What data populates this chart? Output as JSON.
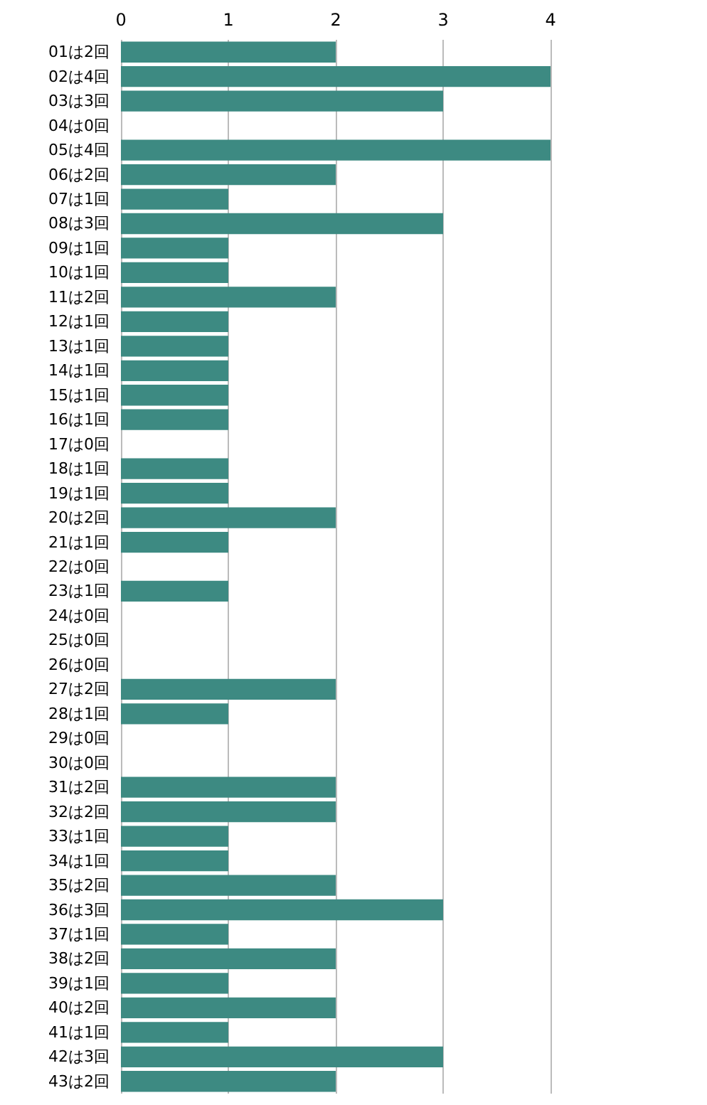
{
  "chart_data": {
    "type": "bar",
    "orientation": "horizontal",
    "categories": [
      "01は2回",
      "02は4回",
      "03は3回",
      "04は0回",
      "05は4回",
      "06は2回",
      "07は1回",
      "08は3回",
      "09は1回",
      "10は1回",
      "11は2回",
      "12は1回",
      "13は1回",
      "14は1回",
      "15は1回",
      "16は1回",
      "17は0回",
      "18は1回",
      "19は1回",
      "20は2回",
      "21は1回",
      "22は0回",
      "23は1回",
      "24は0回",
      "25は0回",
      "26は0回",
      "27は2回",
      "28は1回",
      "29は0回",
      "30は0回",
      "31は2回",
      "32は2回",
      "33は1回",
      "34は1回",
      "35は2回",
      "36は3回",
      "37は1回",
      "38は2回",
      "39は1回",
      "40は2回",
      "41は1回",
      "42は3回",
      "43は2回"
    ],
    "values": [
      2,
      4,
      3,
      0,
      4,
      2,
      1,
      3,
      1,
      1,
      2,
      1,
      1,
      1,
      1,
      1,
      0,
      1,
      1,
      2,
      1,
      0,
      1,
      0,
      0,
      0,
      2,
      1,
      0,
      0,
      2,
      2,
      1,
      1,
      2,
      3,
      1,
      2,
      1,
      2,
      1,
      3,
      2
    ],
    "color": "#3d8a82",
    "xlim": [
      0,
      4
    ],
    "xticks": [
      0,
      1,
      2,
      3,
      4
    ],
    "grid": "x"
  }
}
